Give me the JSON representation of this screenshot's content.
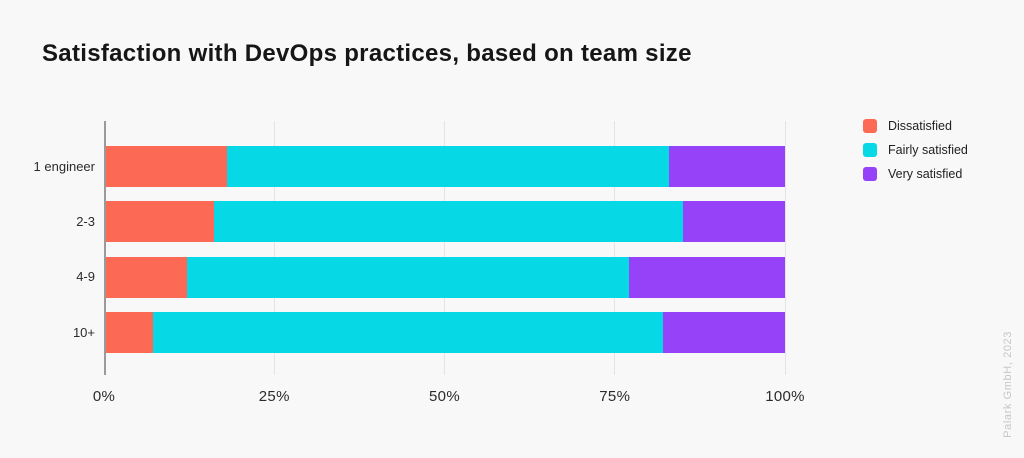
{
  "title": "Satisfaction with DevOps practices, based on team size",
  "watermark": "Palark GmbH, 2023",
  "colors": {
    "background": "#f8f8f8",
    "title_text": "#161616",
    "axis_line": "#9a9a9a",
    "gridline": "#e4e4e4",
    "tick_label": "#2b2b2b",
    "category_label": "#2b2b2b",
    "legend_label": "#1f1f1f",
    "watermark": "#c7c7c7",
    "dissatisfied": "#fc6a55",
    "fairly_satisfied": "#06d8e6",
    "very_satisfied": "#9542f8"
  },
  "chart_data": {
    "type": "bar",
    "orientation": "horizontal",
    "stacked": true,
    "title": "Satisfaction with DevOps practices, based on team size",
    "categories": [
      "1 engineer",
      "2-3",
      "4-9",
      "10+"
    ],
    "series": [
      {
        "name": "Dissatisfied",
        "color": "#fc6a55",
        "values": [
          18,
          16,
          12,
          7
        ]
      },
      {
        "name": "Fairly satisfied",
        "color": "#06d8e6",
        "values": [
          65,
          69,
          65,
          75
        ]
      },
      {
        "name": "Very satisfied",
        "color": "#9542f8",
        "values": [
          17,
          15,
          23,
          18
        ]
      }
    ],
    "x_ticks": [
      "0%",
      "25%",
      "50%",
      "75%",
      "100%"
    ],
    "x_tick_values": [
      0,
      25,
      50,
      75,
      100
    ],
    "xlim": [
      0,
      100
    ],
    "unit": "%",
    "grid": "vertical",
    "legend_position": "top-right"
  }
}
